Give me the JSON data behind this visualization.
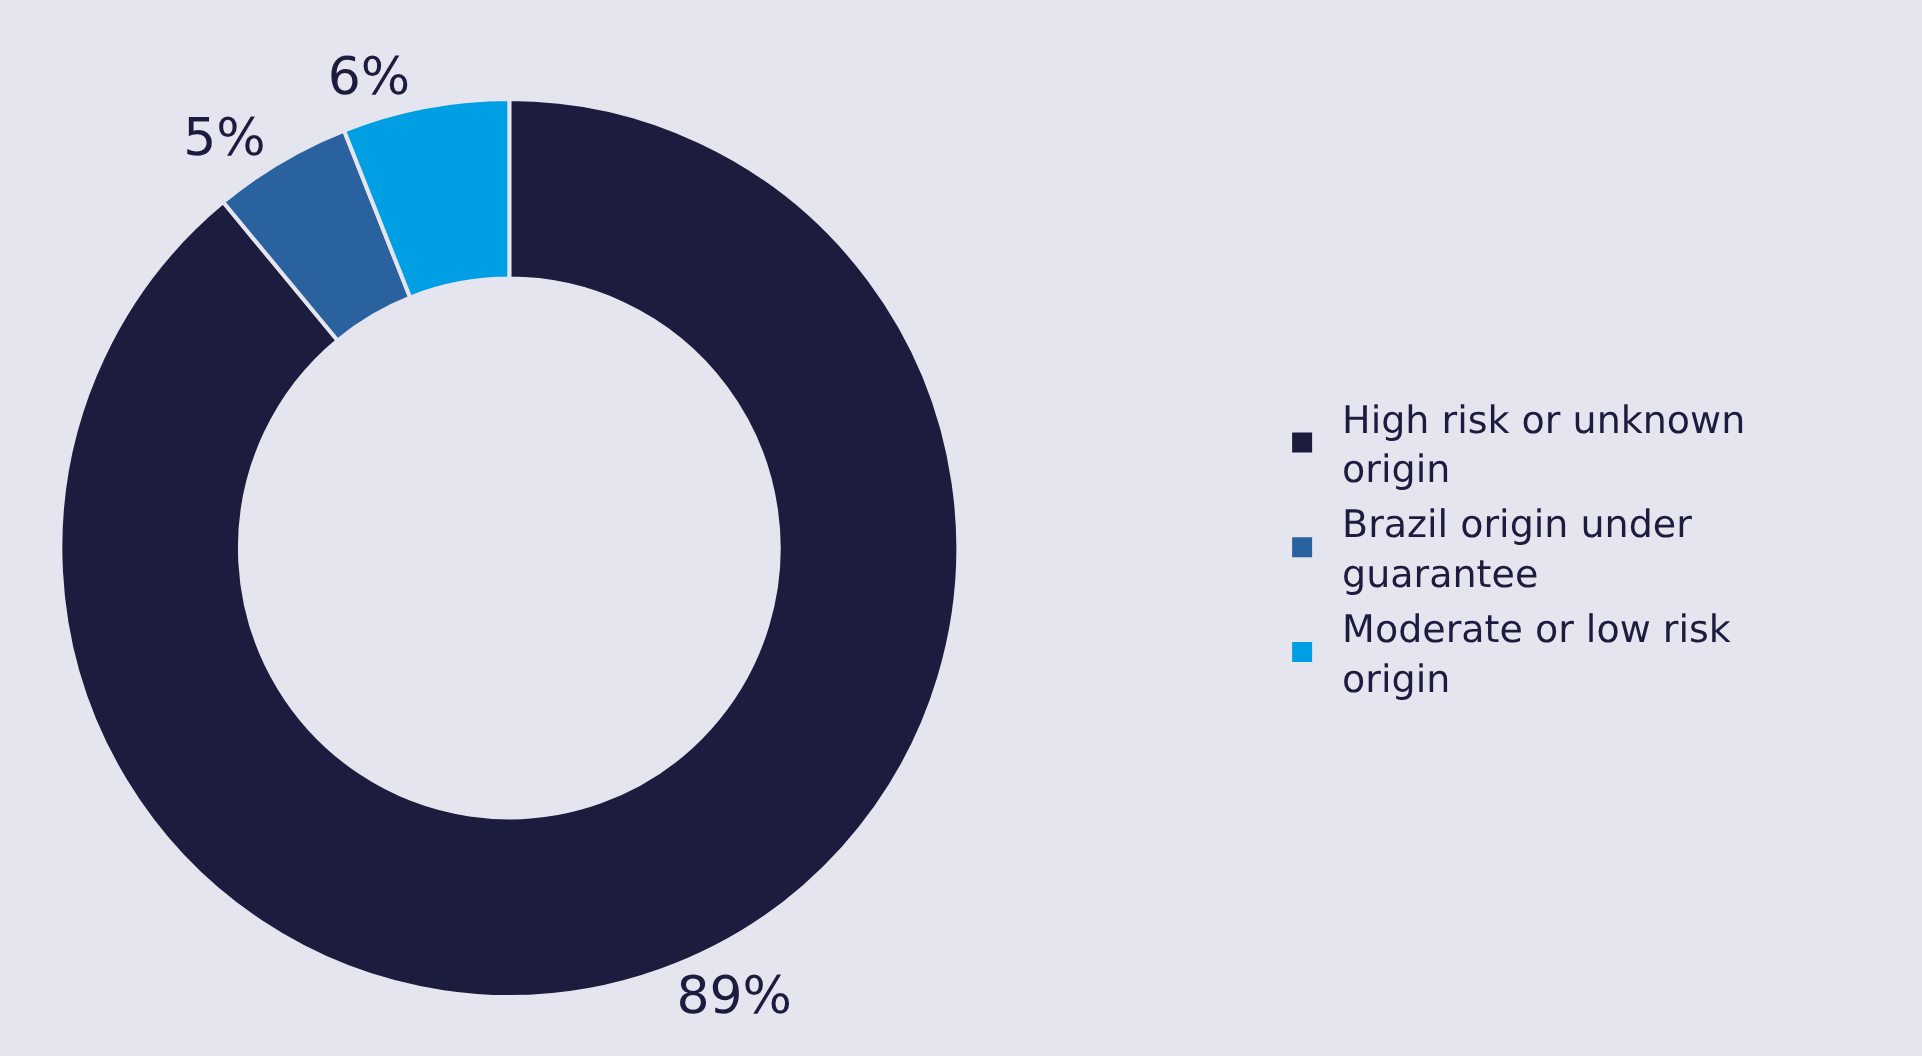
{
  "chart_data": {
    "type": "donut",
    "categories": [
      "High risk or unknown origin",
      "Brazil origin under guarantee",
      "Moderate or low risk origin"
    ],
    "values": [
      89,
      5,
      6
    ],
    "colors": [
      "#1c1d3e",
      "#2a62a0",
      "#009fe3"
    ],
    "value_labels": [
      "89%",
      "5%",
      "6%"
    ],
    "legend": "right"
  }
}
